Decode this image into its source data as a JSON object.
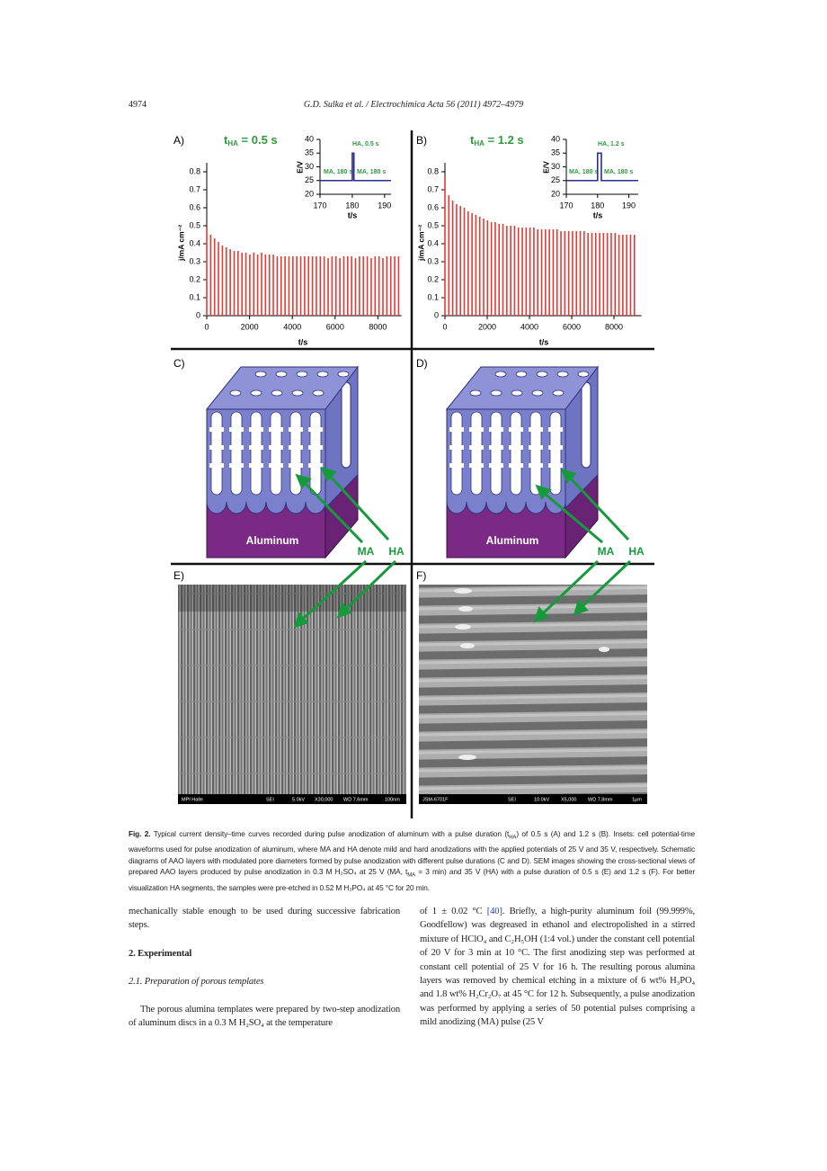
{
  "header": {
    "page_number": "4974",
    "citation": "G.D. Sulka et al. / Electrochimica Acta 56 (2011) 4972–4979"
  },
  "chart_data": [
    {
      "type": "bar",
      "title": [
        "t",
        "HA",
        " = 0.5 s"
      ],
      "title_color": "#2e9a3c",
      "x_label": "t/s",
      "y_label": "j/mA cm⁻²",
      "x": [
        0,
        183,
        366,
        549,
        732,
        915,
        1098,
        1281,
        1464,
        1647,
        1830,
        2013,
        2196,
        2379,
        2562,
        2745,
        2928,
        3111,
        3294,
        3477,
        3660,
        3843,
        4026,
        4209,
        4392,
        4575,
        4758,
        4941,
        5124,
        5307,
        5490,
        5673,
        5856,
        6039,
        6222,
        6405,
        6588,
        6771,
        6954,
        7137,
        7320,
        7503,
        7686,
        7869,
        8052,
        8235,
        8418,
        8601,
        8784,
        8967
      ],
      "series": [
        {
          "color": "#e23b36",
          "values": [
            0.49,
            0.45,
            0.43,
            0.41,
            0.39,
            0.38,
            0.37,
            0.36,
            0.36,
            0.35,
            0.35,
            0.34,
            0.35,
            0.34,
            0.35,
            0.34,
            0.34,
            0.34,
            0.33,
            0.33,
            0.33,
            0.33,
            0.33,
            0.33,
            0.33,
            0.33,
            0.33,
            0.33,
            0.33,
            0.33,
            0.33,
            0.32,
            0.33,
            0.33,
            0.32,
            0.33,
            0.33,
            0.33,
            0.32,
            0.33,
            0.33,
            0.33,
            0.32,
            0.33,
            0.33,
            0.32,
            0.33,
            0.33,
            0.33,
            0.33
          ]
        }
      ],
      "xlim": [
        0,
        9100
      ],
      "ylim": [
        0,
        0.85
      ],
      "xticks": [
        0,
        2000,
        4000,
        6000,
        8000
      ],
      "yticks": [
        0,
        0.1,
        0.2,
        0.3,
        0.4,
        0.5,
        0.6,
        0.7,
        0.8
      ]
    },
    {
      "type": "line",
      "x_label": "t/s",
      "y_label": "E/V",
      "series": [
        {
          "color": "#2b2c8f",
          "x": [
            170,
            180,
            180,
            180.5,
            180.5,
            192
          ],
          "values": [
            25,
            25,
            35,
            35,
            25,
            25
          ]
        }
      ],
      "annotations": [
        "MA, 180 s",
        "HA, 0.5 s",
        "MA, 180 s"
      ],
      "annotation_color": "#2e9a3c",
      "xlim": [
        170,
        192
      ],
      "ylim": [
        20,
        40
      ],
      "xticks": [
        170,
        180,
        190
      ],
      "yticks": [
        20,
        25,
        30,
        35,
        40
      ]
    },
    {
      "type": "bar",
      "title": [
        "t",
        "HA",
        " = 1.2 s"
      ],
      "title_color": "#2e9a3c",
      "x_label": "t/s",
      "y_label": "j/mA cm⁻²",
      "x": [
        0,
        183,
        366,
        549,
        732,
        915,
        1098,
        1281,
        1464,
        1647,
        1830,
        2013,
        2196,
        2379,
        2562,
        2745,
        2928,
        3111,
        3294,
        3477,
        3660,
        3843,
        4026,
        4209,
        4392,
        4575,
        4758,
        4941,
        5124,
        5307,
        5490,
        5673,
        5856,
        6039,
        6222,
        6405,
        6588,
        6771,
        6954,
        7137,
        7320,
        7503,
        7686,
        7869,
        8052,
        8235,
        8418,
        8601,
        8784,
        8967
      ],
      "series": [
        {
          "color": "#e23b36",
          "values": [
            0.77,
            0.67,
            0.64,
            0.62,
            0.61,
            0.6,
            0.58,
            0.57,
            0.56,
            0.55,
            0.54,
            0.53,
            0.52,
            0.52,
            0.51,
            0.51,
            0.5,
            0.5,
            0.5,
            0.49,
            0.49,
            0.49,
            0.49,
            0.49,
            0.48,
            0.48,
            0.48,
            0.48,
            0.48,
            0.48,
            0.47,
            0.47,
            0.47,
            0.47,
            0.47,
            0.47,
            0.47,
            0.46,
            0.46,
            0.46,
            0.46,
            0.46,
            0.46,
            0.46,
            0.46,
            0.45,
            0.45,
            0.45,
            0.45,
            0.45
          ]
        }
      ],
      "xlim": [
        0,
        9300
      ],
      "ylim": [
        0,
        0.85
      ],
      "xticks": [
        0,
        2000,
        4000,
        6000,
        8000
      ],
      "yticks": [
        0,
        0.1,
        0.2,
        0.3,
        0.4,
        0.5,
        0.6,
        0.7,
        0.8
      ]
    },
    {
      "type": "line",
      "x_label": "t/s",
      "y_label": "E/V",
      "series": [
        {
          "color": "#2b2c8f",
          "x": [
            170,
            180,
            180,
            181.2,
            181.2,
            193
          ],
          "values": [
            25,
            25,
            35,
            35,
            25,
            25
          ]
        }
      ],
      "annotations": [
        "MA, 180 s",
        "HA, 1.2 s",
        "MA, 180 s"
      ],
      "annotation_color": "#2e9a3c",
      "xlim": [
        170,
        193
      ],
      "ylim": [
        20,
        40
      ],
      "xticks": [
        170,
        180,
        190
      ],
      "yticks": [
        20,
        25,
        30,
        35,
        40
      ]
    }
  ],
  "figure": {
    "panel_labels": [
      "A)",
      "B)",
      "C)",
      "D)",
      "E)",
      "F)"
    ],
    "diagrams": [
      {
        "substrate": "Aluminum",
        "labels": [
          "MA",
          "HA"
        ]
      },
      {
        "substrate": "Aluminum",
        "labels": [
          "MA",
          "HA"
        ]
      }
    ],
    "micrographs": [
      {
        "info": [
          "MPI Halle",
          "SEI",
          "5.0kV",
          "X30,000",
          "WD 7.6mm",
          "100nm"
        ]
      },
      {
        "info": [
          "JSM-6701F",
          "SEI",
          "10.0kV",
          "X5,000",
          "WD 7.8mm",
          "1μm"
        ]
      }
    ],
    "caption": {
      "label": "Fig. 2.",
      "parts": [
        " Typical current density–time curves recorded during pulse anodization of aluminum with a pulse duration (t",
        {
          "sub": "HA"
        },
        ") of 0.5 s (A) and 1.2 s (B). Insets: cell potential-time waveforms used for pulse anodization of aluminum, where MA and HA denote mild and hard anodizations with the applied potentials of 25 V and 35 V, respectively. Schematic diagrams of AAO layers with modulated pore diameters formed by pulse anodization with different pulse durations (C and D). SEM images showing the cross-sectional views of prepared AAO layers produced by pulse anodization in 0.3 M H₂SO₄ at 25 V (MA, t",
        {
          "sub": "MA"
        },
        " = 3 min) and 35 V (HA) with a pulse duration of 0.5 s (E) and 1.2 s (F). For better visualization HA segments, the samples were pre-etched in 0.52 M H₃PO₄ at 45 °C for 20 min."
      ]
    }
  },
  "body": {
    "left": {
      "paragraph": "mechanically stable enough to be used during successive fabrication steps.",
      "heading": "2. Experimental",
      "subheading": "2.1. Preparation of porous templates",
      "paragraph2": "The porous alumina templates were prepared by two-step anodization of aluminum discs in a 0.3 M H₂SO₄ at the temperature"
    },
    "right": {
      "before": "of 1 ± 0.02 °C ",
      "ref": "[40]",
      "after": ". Briefly, a high-purity aluminum foil (99.999%, Goodfellow) was degreased in ethanol and electropolished in a stirred mixture of HClO₄ and C₂H₅OH (1:4 vol.) under the constant cell potential of 20 V for 3 min at 10 °C. The first anodizing step was performed at constant cell potential of 25 V for 16 h. The resulting porous alumina layers was removed by chemical etching in a mixture of 6 wt% H₃PO₄ and 1.8 wt% H₂Cr₂O₇ at 45 °C for 12 h. Subsequently, a pulse anodization was performed by applying a series of 50 potential pulses comprising a mild anodizing (MA) pulse (25 V"
    }
  }
}
